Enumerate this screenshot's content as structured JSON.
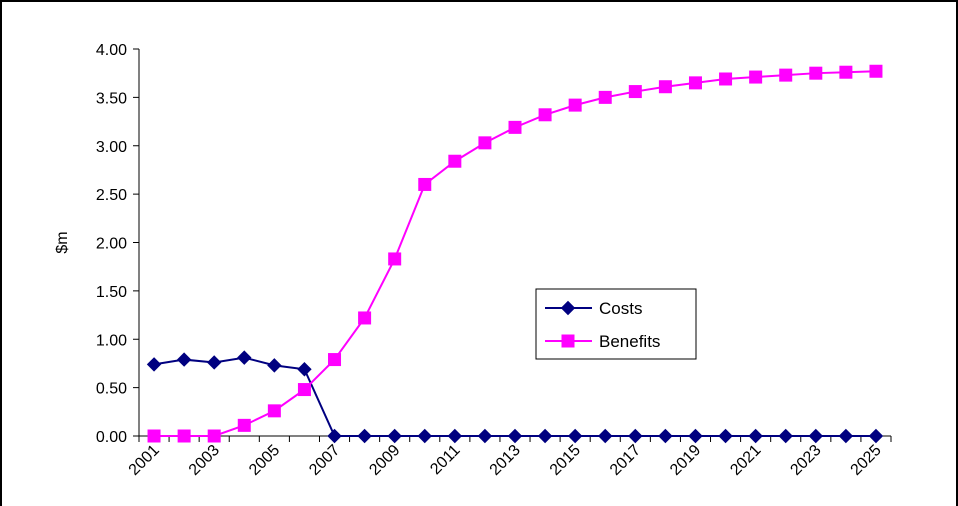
{
  "chart_data": {
    "type": "line",
    "title": "",
    "xlabel": "",
    "ylabel": "$m",
    "x": [
      2001,
      2002,
      2003,
      2004,
      2005,
      2006,
      2007,
      2008,
      2009,
      2010,
      2011,
      2012,
      2013,
      2014,
      2015,
      2016,
      2017,
      2018,
      2019,
      2020,
      2021,
      2022,
      2023,
      2024,
      2025
    ],
    "x_tick_labels": [
      "2001",
      "2003",
      "2005",
      "2007",
      "2009",
      "2011",
      "2013",
      "2015",
      "2017",
      "2019",
      "2021",
      "2023",
      "2025"
    ],
    "y_tick_labels": [
      "0.00",
      "0.50",
      "1.00",
      "1.50",
      "2.00",
      "2.50",
      "3.00",
      "3.50",
      "4.00"
    ],
    "ylim": [
      0,
      4
    ],
    "grid": false,
    "legend_position": "center-right",
    "series": [
      {
        "name": "Costs",
        "color": "#000080",
        "marker": "diamond",
        "values": [
          0.74,
          0.79,
          0.76,
          0.81,
          0.73,
          0.69,
          0,
          0,
          0,
          0,
          0,
          0,
          0,
          0,
          0,
          0,
          0,
          0,
          0,
          0,
          0,
          0,
          0,
          0,
          0
        ]
      },
      {
        "name": "Benefits",
        "color": "#FF00FF",
        "marker": "square",
        "values": [
          0,
          0,
          0,
          0.11,
          0.26,
          0.48,
          0.79,
          1.22,
          1.83,
          2.6,
          2.84,
          3.03,
          3.19,
          3.32,
          3.42,
          3.5,
          3.56,
          3.61,
          3.65,
          3.69,
          3.71,
          3.73,
          3.75,
          3.76,
          3.77
        ]
      }
    ]
  }
}
